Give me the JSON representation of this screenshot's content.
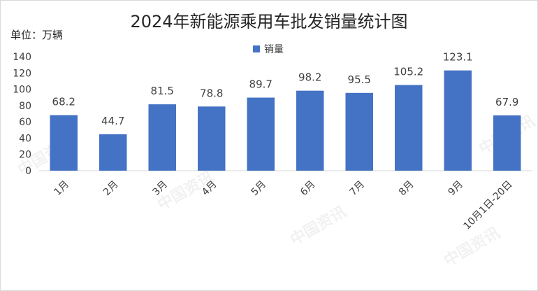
{
  "chart_data": {
    "type": "bar",
    "title": "2024年新能源乘用车批发销量统计图",
    "unit_label": "单位：万辆",
    "categories": [
      "1月",
      "2月",
      "3月",
      "4月",
      "5月",
      "6月",
      "7月",
      "8月",
      "9月",
      "10月1日-20日"
    ],
    "series": [
      {
        "name": "销量",
        "values": [
          68.2,
          44.7,
          81.5,
          78.8,
          89.7,
          98.2,
          95.5,
          105.2,
          123.1,
          67.9
        ]
      }
    ],
    "yticks": [
      "0",
      "20",
      "40",
      "60",
      "80",
      "100",
      "120",
      "140"
    ],
    "ylim": [
      0,
      140
    ],
    "grid": false,
    "legend": "top-center",
    "bar_color": "#4472c4",
    "watermark": "中国资讯"
  }
}
